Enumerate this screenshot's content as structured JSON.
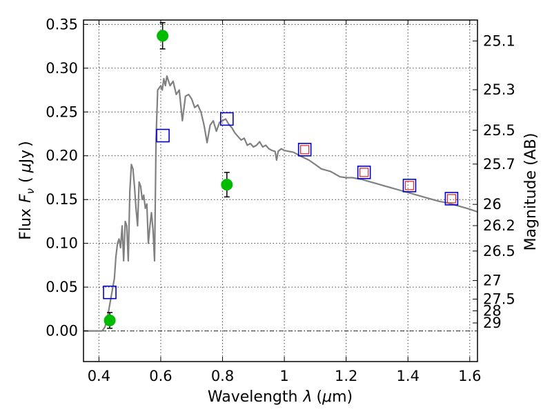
{
  "chart_data": {
    "type": "scatter",
    "title": "",
    "xlabel_parts": [
      "Wavelength",
      "λ",
      "(",
      "μ",
      "m)"
    ],
    "ylabel_parts": [
      "Flux",
      "F",
      "ν",
      "(",
      "μ",
      "Jy",
      ")"
    ],
    "y2label": "Magnitude (AB)",
    "xlim": [
      0.35,
      1.625
    ],
    "ylim": [
      -0.035,
      0.355
    ],
    "x_ticks": [
      0.4,
      0.6,
      0.8,
      1.0,
      1.2,
      1.4,
      1.6
    ],
    "x_tick_labels": [
      "0.4",
      "0.6",
      "0.8",
      "1",
      "1.2",
      "1.4",
      "1.6"
    ],
    "y_ticks": [
      0.0,
      0.05,
      0.1,
      0.15,
      0.2,
      0.25,
      0.3,
      0.35
    ],
    "y_tick_labels": [
      "0.00",
      "0.05",
      "0.10",
      "0.15",
      "0.20",
      "0.25",
      "0.30",
      "0.35"
    ],
    "y2_ticks": [
      {
        "label": "25.1",
        "flux": 0.3311
      },
      {
        "label": "25.3",
        "flux": 0.2754
      },
      {
        "label": "25.5",
        "flux": 0.2291
      },
      {
        "label": "25.7",
        "flux": 0.1905
      },
      {
        "label": "26",
        "flux": 0.1445
      },
      {
        "label": "26.2",
        "flux": 0.1202
      },
      {
        "label": "26.5",
        "flux": 0.0912
      },
      {
        "label": "27",
        "flux": 0.0575
      },
      {
        "label": "27.5",
        "flux": 0.0363
      },
      {
        "label": "28",
        "flux": 0.0229
      },
      {
        "label": "29",
        "flux": 0.0091
      }
    ],
    "grid": true,
    "zero_line": true,
    "series": [
      {
        "kind": "line",
        "color": "#808080",
        "points": [
          [
            0.35,
            0.0
          ],
          [
            0.4,
            0.0
          ],
          [
            0.41,
            0.0
          ],
          [
            0.415,
            0.002
          ],
          [
            0.42,
            0.005
          ],
          [
            0.43,
            0.02
          ],
          [
            0.44,
            0.04
          ],
          [
            0.45,
            0.06
          ],
          [
            0.455,
            0.085
          ],
          [
            0.46,
            0.1
          ],
          [
            0.465,
            0.105
          ],
          [
            0.47,
            0.095
          ],
          [
            0.475,
            0.12
          ],
          [
            0.48,
            0.08
          ],
          [
            0.485,
            0.125
          ],
          [
            0.49,
            0.12
          ],
          [
            0.495,
            0.08
          ],
          [
            0.5,
            0.16
          ],
          [
            0.505,
            0.19
          ],
          [
            0.51,
            0.185
          ],
          [
            0.515,
            0.165
          ],
          [
            0.52,
            0.14
          ],
          [
            0.525,
            0.12
          ],
          [
            0.53,
            0.17
          ],
          [
            0.535,
            0.165
          ],
          [
            0.54,
            0.15
          ],
          [
            0.545,
            0.155
          ],
          [
            0.55,
            0.14
          ],
          [
            0.555,
            0.145
          ],
          [
            0.56,
            0.1
          ],
          [
            0.565,
            0.12
          ],
          [
            0.57,
            0.135
          ],
          [
            0.575,
            0.115
          ],
          [
            0.58,
            0.08
          ],
          [
            0.585,
            0.22
          ],
          [
            0.59,
            0.275
          ],
          [
            0.6,
            0.28
          ],
          [
            0.605,
            0.275
          ],
          [
            0.61,
            0.288
          ],
          [
            0.615,
            0.28
          ],
          [
            0.62,
            0.291
          ],
          [
            0.63,
            0.28
          ],
          [
            0.64,
            0.285
          ],
          [
            0.65,
            0.27
          ],
          [
            0.66,
            0.275
          ],
          [
            0.67,
            0.24
          ],
          [
            0.68,
            0.268
          ],
          [
            0.69,
            0.27
          ],
          [
            0.7,
            0.265
          ],
          [
            0.71,
            0.255
          ],
          [
            0.72,
            0.258
          ],
          [
            0.73,
            0.25
          ],
          [
            0.74,
            0.235
          ],
          [
            0.75,
            0.215
          ],
          [
            0.76,
            0.235
          ],
          [
            0.77,
            0.24
          ],
          [
            0.78,
            0.228
          ],
          [
            0.79,
            0.238
          ],
          [
            0.8,
            0.24
          ],
          [
            0.81,
            0.242
          ],
          [
            0.82,
            0.236
          ],
          [
            0.83,
            0.232
          ],
          [
            0.84,
            0.226
          ],
          [
            0.85,
            0.222
          ],
          [
            0.86,
            0.218
          ],
          [
            0.87,
            0.22
          ],
          [
            0.88,
            0.212
          ],
          [
            0.89,
            0.214
          ],
          [
            0.9,
            0.21
          ],
          [
            0.91,
            0.212
          ],
          [
            0.92,
            0.216
          ],
          [
            0.93,
            0.21
          ],
          [
            0.94,
            0.212
          ],
          [
            0.95,
            0.208
          ],
          [
            0.96,
            0.206
          ],
          [
            0.97,
            0.205
          ],
          [
            0.975,
            0.195
          ],
          [
            0.98,
            0.205
          ],
          [
            0.99,
            0.208
          ],
          [
            1.0,
            0.206
          ],
          [
            1.03,
            0.204
          ],
          [
            1.05,
            0.2
          ],
          [
            1.08,
            0.195
          ],
          [
            1.1,
            0.19
          ],
          [
            1.12,
            0.185
          ],
          [
            1.15,
            0.182
          ],
          [
            1.18,
            0.176
          ],
          [
            1.2,
            0.175
          ],
          [
            1.22,
            0.175
          ],
          [
            1.25,
            0.173
          ],
          [
            1.28,
            0.17
          ],
          [
            1.3,
            0.168
          ],
          [
            1.32,
            0.166
          ],
          [
            1.35,
            0.163
          ],
          [
            1.38,
            0.16
          ],
          [
            1.4,
            0.158
          ],
          [
            1.43,
            0.155
          ],
          [
            1.46,
            0.152
          ],
          [
            1.5,
            0.148
          ],
          [
            1.53,
            0.146
          ],
          [
            1.56,
            0.143
          ],
          [
            1.58,
            0.141
          ],
          [
            1.6,
            0.139
          ],
          [
            1.625,
            0.136
          ]
        ]
      },
      {
        "kind": "squares",
        "color": "#0000cc",
        "points": [
          [
            0.435,
            0.044
          ],
          [
            0.607,
            0.223
          ],
          [
            0.814,
            0.242
          ],
          [
            1.066,
            0.207
          ],
          [
            1.258,
            0.181
          ],
          [
            1.405,
            0.166
          ],
          [
            1.541,
            0.151
          ]
        ]
      },
      {
        "kind": "squares",
        "color": "#e03030",
        "points": [
          [
            1.066,
            0.207
          ],
          [
            1.258,
            0.181
          ],
          [
            1.405,
            0.166
          ],
          [
            1.541,
            0.151
          ]
        ]
      },
      {
        "kind": "points-errorbars",
        "color": "#00bb00",
        "points": [
          {
            "x": 0.435,
            "y": 0.012,
            "err": 0.009
          },
          {
            "x": 0.606,
            "y": 0.337,
            "err": 0.015
          },
          {
            "x": 0.814,
            "y": 0.167,
            "err": 0.014
          }
        ]
      }
    ]
  }
}
